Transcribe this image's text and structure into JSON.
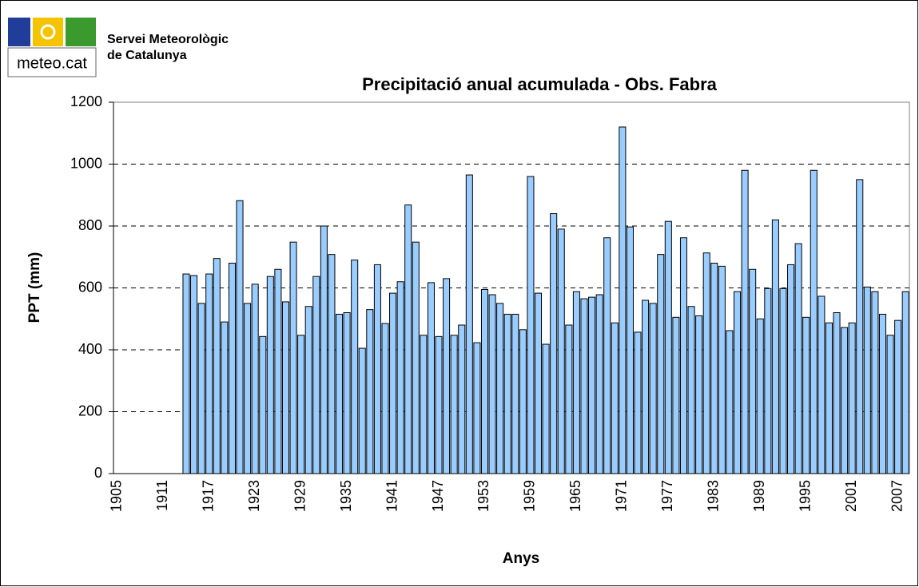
{
  "header": {
    "logo_text": "meteo.cat",
    "org_line1": "Servei Meteorològic",
    "org_line2": "de Catalunya"
  },
  "chart_data": {
    "type": "bar",
    "title": "Precipitació anual acumulada - Obs. Fabra",
    "x_label": "Anys",
    "y_label": "PPT (mm)",
    "categories": [
      "1905",
      null,
      null,
      null,
      null,
      null,
      "1911",
      null,
      null,
      null,
      null,
      null,
      "1917",
      null,
      null,
      null,
      null,
      null,
      "1923",
      null,
      null,
      null,
      null,
      null,
      "1929",
      null,
      null,
      null,
      null,
      null,
      "1935",
      null,
      null,
      null,
      null,
      null,
      "1941",
      null,
      null,
      null,
      null,
      null,
      "1947",
      null,
      null,
      null,
      null,
      null,
      "1953",
      null,
      null,
      null,
      null,
      null,
      "1959",
      null,
      null,
      null,
      null,
      null,
      "1965",
      null,
      null,
      null,
      null,
      null,
      "1971",
      null,
      null,
      null,
      null,
      null,
      "1977",
      null,
      null,
      null,
      null,
      null,
      "1983",
      null,
      null,
      null,
      null,
      null,
      "1989",
      null,
      null,
      null,
      null,
      null,
      "1995",
      null,
      null,
      null,
      null,
      null,
      "2001",
      null,
      null,
      null,
      null,
      null,
      "2007",
      null
    ],
    "values": [
      null,
      null,
      null,
      null,
      null,
      null,
      null,
      null,
      null,
      645,
      640,
      550,
      645,
      695,
      490,
      680,
      882,
      550,
      612,
      443,
      637,
      660,
      555,
      748,
      447,
      540,
      637,
      800,
      708,
      515,
      520,
      690,
      405,
      530,
      675,
      485,
      583,
      620,
      868,
      748,
      447,
      617,
      443,
      630,
      447,
      480,
      965,
      423,
      595,
      578,
      550,
      515,
      515,
      465,
      960,
      583,
      418,
      840,
      790,
      480,
      588,
      565,
      570,
      578,
      762,
      487,
      1120,
      797,
      457,
      560,
      550,
      708,
      815,
      505,
      762,
      540,
      510,
      713,
      680,
      670,
      462,
      588,
      980,
      660,
      500,
      598,
      820,
      598,
      675,
      743,
      505,
      980,
      573,
      487,
      520,
      472,
      487,
      950,
      603,
      588,
      515,
      447,
      495,
      588
    ],
    "color": "#99ccff",
    "ylim": [
      0,
      1200
    ],
    "yticks": [
      0,
      200,
      400,
      600,
      800,
      1000,
      1200
    ],
    "grid": true
  }
}
